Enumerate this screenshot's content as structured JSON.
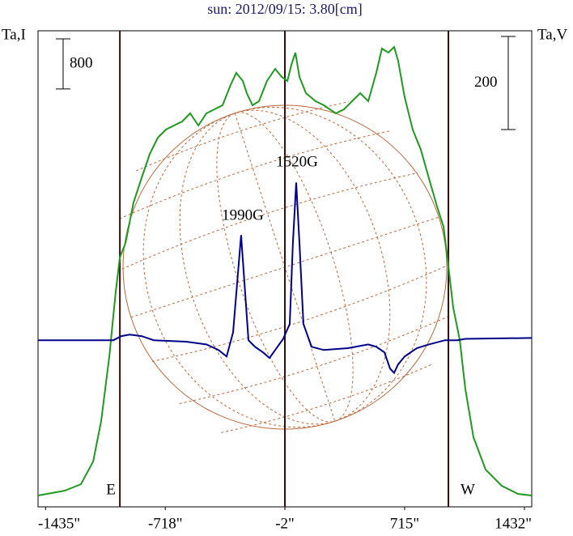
{
  "chart_data": {
    "type": "line",
    "title": "sun: 2012/09/15: 3.80[cm]",
    "ylabel": "Ta,I",
    "y2label": "Ta,V",
    "xlim": [
      -1480,
      1476
    ],
    "ylim": [
      0,
      7600
    ],
    "y2lim": [
      -358,
      665
    ],
    "xticks": [
      {
        "value": -1435,
        "label": "-1435\""
      },
      {
        "value": -718,
        "label": "-718\""
      },
      {
        "value": -2,
        "label": "-2\""
      },
      {
        "value": 715,
        "label": "715\""
      },
      {
        "value": 1432,
        "label": "1432\""
      }
    ],
    "vlines": [
      -990,
      -2,
      977
    ],
    "y_scale_bar": 800,
    "y2_scale_bar": 200,
    "annotations": [
      "1990G",
      "1520G",
      "E",
      "W"
    ],
    "series": [
      {
        "name": "Ta,I",
        "color": "#1f9a1f",
        "x": [
          -1480,
          -1320,
          -1223,
          -1150,
          -1102,
          -1053,
          -1015,
          -990,
          -956,
          -908,
          -860,
          -811,
          -763,
          -714,
          -666,
          -617,
          -569,
          -520,
          -472,
          -424,
          -375,
          -327,
          -293,
          -254,
          -230,
          -196,
          -157,
          -109,
          -60,
          -21,
          13,
          37,
          61,
          85,
          124,
          182,
          231,
          303,
          352,
          400,
          449,
          497,
          545,
          579,
          618,
          652,
          676,
          715,
          763,
          812,
          860,
          909,
          948,
          972,
          1006,
          1045,
          1078,
          1127,
          1200,
          1296,
          1393,
          1476
        ],
        "values": [
          181,
          259,
          362,
          724,
          1370,
          2404,
          3438,
          3981,
          4214,
          4860,
          5248,
          5635,
          5894,
          6023,
          6088,
          6152,
          6282,
          6088,
          6282,
          6346,
          6411,
          6734,
          6928,
          6799,
          6605,
          6411,
          6475,
          6799,
          6992,
          6863,
          6799,
          7057,
          7251,
          6863,
          6605,
          6475,
          6411,
          6282,
          6346,
          6475,
          6605,
          6475,
          6928,
          7316,
          7251,
          7341,
          7122,
          6540,
          6023,
          5700,
          5248,
          4795,
          4472,
          3955,
          3180,
          2663,
          1887,
          1112,
          595,
          336,
          207,
          181
        ]
      },
      {
        "name": "Ta,V",
        "color": "#00008b",
        "axis": "y2",
        "x": [
          -1480,
          -1029,
          -981,
          -932,
          -860,
          -787,
          -593,
          -472,
          -399,
          -351,
          -312,
          -288,
          -264,
          -244,
          -220,
          -181,
          -133,
          -94,
          -60,
          -12,
          27,
          46,
          66,
          85,
          109,
          158,
          231,
          376,
          497,
          545,
          594,
          628,
          652,
          676,
          715,
          788,
          860,
          957,
          1030,
          1078,
          1476
        ],
        "values": [
          0,
          0,
          9,
          12,
          9,
          0,
          -3,
          -9,
          -21,
          -35,
          17,
          122,
          226,
          122,
          0,
          -14,
          -26,
          -38,
          -21,
          3,
          35,
          209,
          339,
          209,
          35,
          -14,
          -21,
          -17,
          -9,
          -14,
          -26,
          -61,
          -70,
          -52,
          -35,
          -17,
          -9,
          0,
          0,
          3,
          5
        ]
      }
    ]
  }
}
